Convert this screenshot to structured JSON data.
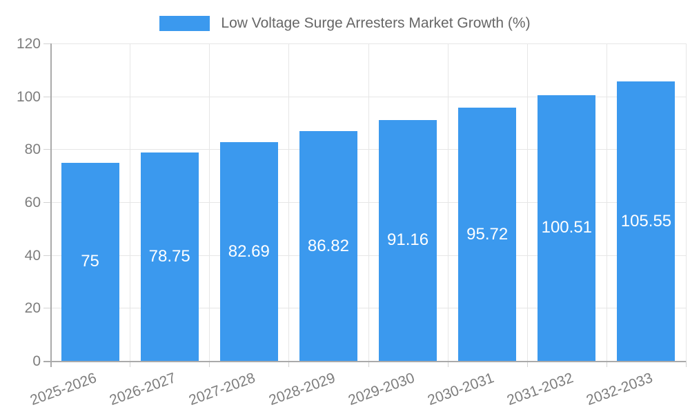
{
  "chart_data": {
    "type": "bar",
    "title": "Low Voltage Surge Arresters Market Growth (%)",
    "legend_entries": [
      "Low Voltage Surge Arresters Market Growth (%)"
    ],
    "legend_position": "top-center",
    "categories": [
      "2025-2026",
      "2026-2027",
      "2027-2028",
      "2028-2029",
      "2029-2030",
      "2030-2031",
      "2031-2032",
      "2032-2033"
    ],
    "values": [
      75,
      78.75,
      82.69,
      86.82,
      91.16,
      95.72,
      100.51,
      105.55
    ],
    "value_labels": [
      "75",
      "78.75",
      "82.69",
      "86.82",
      "91.16",
      "95.72",
      "100.51",
      "105.55"
    ],
    "xlabel": "",
    "ylabel": "",
    "ylim": [
      0,
      120
    ],
    "yticks": [
      0,
      20,
      40,
      60,
      80,
      100,
      120
    ],
    "grid": true,
    "colors": {
      "bar": "#3b99ee",
      "bar_value_text": "#ffffff",
      "axis_text": "#7d7d7d",
      "legend_text": "#666666",
      "gridline": "#e6e6e6",
      "tick": "#d2d2d2",
      "axis_line": "#aaaaaa",
      "background": "#ffffff"
    }
  }
}
